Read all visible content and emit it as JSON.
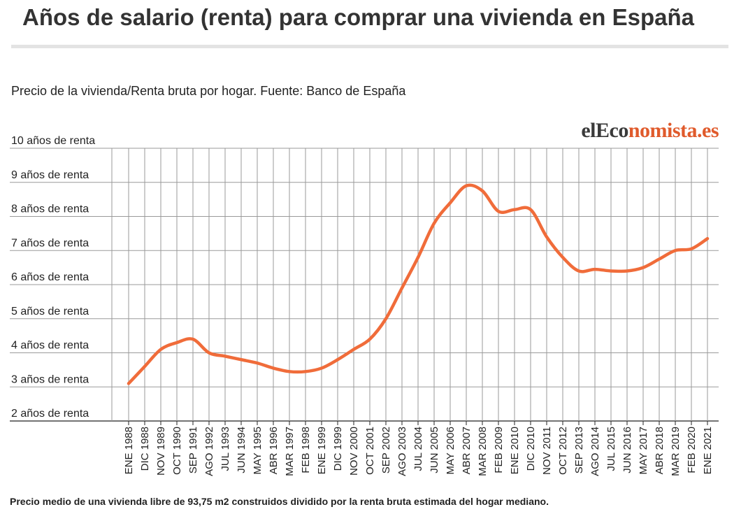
{
  "header": {
    "title": "Años de salario (renta) para comprar una vivienda en España",
    "subtitle": "Precio de la vivienda/Renta bruta por hogar. Fuente: Banco de España"
  },
  "brand": {
    "part1": "el",
    "part2": "Eco",
    "part3": "nomista.es"
  },
  "footnote": "Precio medio de una vivienda libre de 93,75 m2 construidos dividido por la renta bruta estimada del hogar mediano.",
  "colors": {
    "line": "#f06c3a",
    "grid": "#9a9a9a",
    "axis": "#222222",
    "brand_accent": "#e05a2b"
  },
  "chart_data": {
    "type": "line",
    "ylim": [
      2,
      10
    ],
    "y_tick_values": [
      10,
      9,
      8,
      7,
      6,
      5,
      4,
      3,
      2
    ],
    "y_tick_labels": [
      "10 años de renta",
      "9 años de renta",
      "8 años de renta",
      "7 años de renta",
      "6 años de renta",
      "5 años de renta",
      "4 años de renta",
      "3 años de renta",
      "2 años de renta"
    ],
    "x_tick_labels": [
      "ENE 1988",
      "DIC 1988",
      "NOV 1989",
      "OCT 1990",
      "SEP 1991",
      "AGO 1992",
      "JUL 1993",
      "JUN 1994",
      "MAY 1995",
      "ABR 1996",
      "MAR 1997",
      "FEB 1998",
      "ENE 1999",
      "DIC 1999",
      "NOV 2000",
      "OCT 2001",
      "SEP 2002",
      "AGO 2003",
      "JUL 2004",
      "JUN 2005",
      "MAY 2006",
      "ABR 2007",
      "MAR 2008",
      "FEB 2009",
      "ENE 2010",
      "DIC 2010",
      "NOV 2011",
      "OCT 2012",
      "SEP 2013",
      "AGO 2014",
      "JUL 2015",
      "JUN 2016",
      "MAY 2017",
      "ABR 2018",
      "MAR 2019",
      "FEB 2020",
      "ENE 2021"
    ],
    "grid": true,
    "series": [
      {
        "x": [
          "ENE 1988",
          "DIC 1988",
          "NOV 1989",
          "OCT 1990",
          "SEP 1991",
          "AGO 1992",
          "JUL 1993",
          "JUN 1994",
          "MAY 1995",
          "ABR 1996",
          "MAR 1997",
          "FEB 1998",
          "ENE 1999",
          "DIC 1999",
          "NOV 2000",
          "OCT 2001",
          "SEP 2002",
          "AGO 2003",
          "JUL 2004",
          "JUN 2005",
          "MAY 2006",
          "ABR 2007",
          "MAR 2008",
          "FEB 2009",
          "ENE 2010",
          "DIC 2010",
          "NOV 2011",
          "OCT 2012",
          "SEP 2013",
          "AGO 2014",
          "JUL 2015",
          "JUN 2016",
          "MAY 2017",
          "ABR 2018",
          "MAR 2019",
          "FEB 2020",
          "ENE 2021"
        ],
        "values": [
          3.1,
          3.6,
          4.1,
          4.3,
          4.4,
          4.0,
          3.9,
          3.8,
          3.7,
          3.55,
          3.45,
          3.45,
          3.55,
          3.8,
          4.1,
          4.4,
          5.0,
          5.9,
          6.8,
          7.8,
          8.4,
          8.9,
          8.75,
          8.15,
          8.2,
          8.2,
          7.4,
          6.8,
          6.4,
          6.45,
          6.4,
          6.4,
          6.5,
          6.75,
          7.0,
          7.05,
          7.35
        ]
      }
    ]
  }
}
